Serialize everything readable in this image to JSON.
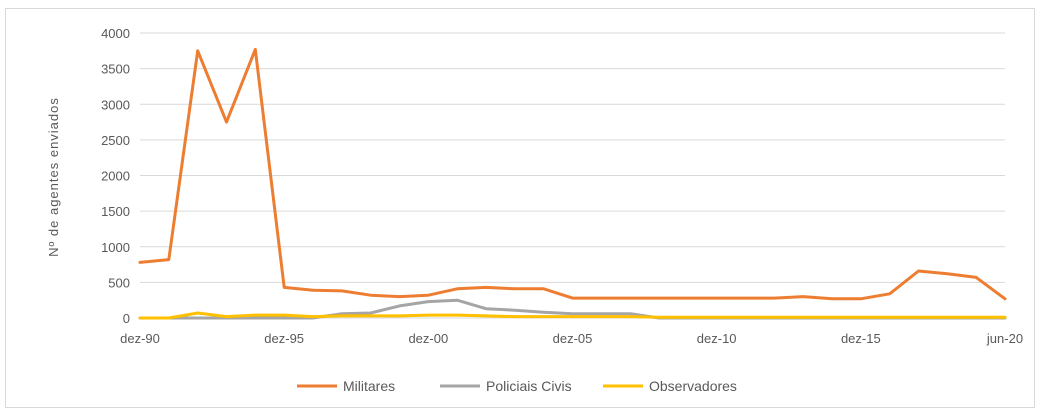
{
  "chart_data": {
    "type": "line",
    "ylabel": "Nº de agentes enviados",
    "xlabel": "",
    "ylim": [
      0,
      4000
    ],
    "yticks": [
      0,
      500,
      1000,
      1500,
      2000,
      2500,
      3000,
      3500,
      4000
    ],
    "x_range": [
      1990,
      2020
    ],
    "x_ticks": [
      {
        "x": 1990,
        "label": "dez-90"
      },
      {
        "x": 1995,
        "label": "dez-95"
      },
      {
        "x": 2000,
        "label": "dez-00"
      },
      {
        "x": 2005,
        "label": "dez-05"
      },
      {
        "x": 2010,
        "label": "dez-10"
      },
      {
        "x": 2015,
        "label": "dez-15"
      },
      {
        "x": 2020,
        "label": "jun-20"
      }
    ],
    "x": [
      1990,
      1991,
      1992,
      1993,
      1994,
      1995,
      1996,
      1997,
      1998,
      1999,
      2000,
      2001,
      2002,
      2003,
      2004,
      2005,
      2006,
      2007,
      2008,
      2009,
      2010,
      2011,
      2012,
      2013,
      2014,
      2015,
      2016,
      2017,
      2018,
      2019,
      2020
    ],
    "series": [
      {
        "name": "Militares",
        "color": "#ed7d31",
        "values": [
          780,
          820,
          3750,
          2750,
          3770,
          430,
          390,
          380,
          320,
          300,
          320,
          410,
          430,
          410,
          410,
          280,
          280,
          280,
          280,
          280,
          280,
          280,
          280,
          300,
          270,
          270,
          340,
          660,
          620,
          570,
          270
        ]
      },
      {
        "name": "Policiais Civis",
        "color": "#a5a5a5",
        "values": [
          0,
          0,
          0,
          0,
          0,
          0,
          0,
          60,
          70,
          170,
          230,
          250,
          130,
          110,
          80,
          60,
          60,
          60,
          0,
          0,
          0,
          0,
          0,
          0,
          0,
          0,
          0,
          0,
          0,
          0,
          0
        ]
      },
      {
        "name": "Observadores",
        "color": "#ffc000",
        "values": [
          0,
          0,
          70,
          20,
          40,
          40,
          20,
          30,
          30,
          30,
          40,
          40,
          30,
          20,
          20,
          20,
          20,
          20,
          10,
          10,
          10,
          10,
          10,
          10,
          10,
          10,
          10,
          10,
          10,
          10,
          10
        ]
      }
    ],
    "legend": "bottom",
    "grid": true
  }
}
